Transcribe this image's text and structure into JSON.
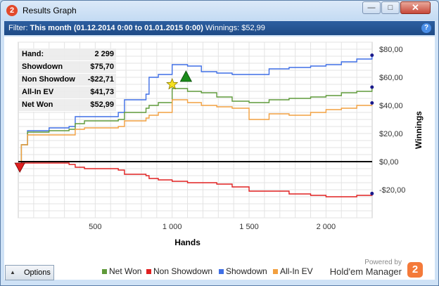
{
  "window": {
    "title": "Results Graph",
    "app_icon": "2"
  },
  "window_buttons": {
    "minimize": "—",
    "maximize": "□",
    "close": "✕"
  },
  "filter": {
    "label": "Filter:",
    "value": "This month (01.12.2014 0:00 to 01.01.2015 0:00)",
    "winnings": "Winnings: $52,99",
    "help": "?"
  },
  "stats": [
    {
      "label": "Hand:",
      "value": "2 299"
    },
    {
      "label": "Showdown",
      "value": "$75,70"
    },
    {
      "label": "Non Showdown",
      "value": "-$22,71"
    },
    {
      "label": "All-In EV",
      "value": "$41,73"
    },
    {
      "label": "Net Won",
      "value": "$52,99"
    }
  ],
  "options_button": "Options",
  "legend": [
    {
      "name": "Net Won",
      "color": "#5f9a3a"
    },
    {
      "name": "Non Showdown",
      "color": "#e02020"
    },
    {
      "name": "Showdown",
      "color": "#3f6fe6"
    },
    {
      "name": "All-In EV",
      "color": "#f2a040"
    }
  ],
  "brand": {
    "powered_by": "Powered by",
    "name": "Hold'em Manager",
    "logo": "2"
  },
  "chart_data": {
    "type": "line",
    "xlabel": "Hands",
    "ylabel": "Winnings",
    "xlim": [
      0,
      2300
    ],
    "ylim": [
      -40,
      85
    ],
    "x_ticks": [
      500,
      1000,
      1500,
      2000
    ],
    "x_tick_labels": [
      "500",
      "1 000",
      "1 500",
      "2 000"
    ],
    "y_ticks": [
      80,
      60,
      40,
      20,
      0,
      -20
    ],
    "y_tick_labels": [
      "$80,00",
      "$60,00",
      "$40,00",
      "$20,00",
      "$0,00",
      "-$20,00"
    ],
    "grid": true,
    "series": [
      {
        "name": "Showdown",
        "color": "#3f6fe6",
        "x": [
          0,
          20,
          60,
          200,
          330,
          370,
          430,
          650,
          690,
          830,
          850,
          910,
          1000,
          1100,
          1190,
          1290,
          1390,
          1500,
          1630,
          1760,
          1900,
          2000,
          2100,
          2200,
          2299
        ],
        "y": [
          0,
          12,
          22,
          24,
          25,
          32,
          32,
          35,
          44,
          48,
          60,
          62,
          69,
          68,
          64,
          63,
          62,
          62,
          66,
          67,
          68,
          69,
          71,
          73,
          75.7
        ]
      },
      {
        "name": "Net Won",
        "color": "#5f9a3a",
        "x": [
          0,
          20,
          60,
          200,
          330,
          370,
          430,
          650,
          690,
          830,
          850,
          910,
          1000,
          1100,
          1190,
          1290,
          1390,
          1500,
          1630,
          1760,
          1900,
          2000,
          2100,
          2200,
          2299
        ],
        "y": [
          0,
          12,
          21,
          22,
          23,
          27,
          29,
          30,
          35,
          38,
          40,
          42,
          52,
          50,
          49,
          46,
          43,
          42,
          44,
          45,
          46,
          47,
          49,
          50,
          52.99
        ]
      },
      {
        "name": "All-In EV",
        "color": "#f2a040",
        "x": [
          0,
          20,
          60,
          200,
          330,
          370,
          430,
          650,
          690,
          830,
          850,
          910,
          1000,
          1100,
          1190,
          1290,
          1390,
          1500,
          1630,
          1760,
          1900,
          2000,
          2100,
          2200,
          2299
        ],
        "y": [
          0,
          12,
          19,
          19,
          19,
          23,
          24,
          25,
          29,
          31,
          33,
          35,
          44,
          42,
          40,
          39,
          38,
          30,
          34,
          33,
          35,
          37,
          38,
          40,
          41.73
        ]
      },
      {
        "name": "Non Showdown",
        "color": "#e02020",
        "x": [
          0,
          20,
          60,
          200,
          330,
          370,
          430,
          650,
          690,
          830,
          850,
          910,
          1000,
          1100,
          1190,
          1290,
          1390,
          1500,
          1630,
          1760,
          1900,
          2000,
          2100,
          2200,
          2299
        ],
        "y": [
          0,
          -1,
          -1,
          -1,
          -2,
          -4,
          -5,
          -6,
          -9,
          -10,
          -12,
          -13,
          -14,
          -15,
          -15,
          -16,
          -18,
          -21,
          -21,
          -23,
          -24,
          -25,
          -25,
          -24,
          -22.71
        ]
      }
    ],
    "markers": [
      {
        "name": "min",
        "shape": "triangle-down",
        "color": "#e02020",
        "x": 10,
        "y": -4
      },
      {
        "name": "best",
        "shape": "star",
        "color": "#f5e020",
        "x": 1000,
        "y": 55
      },
      {
        "name": "max",
        "shape": "triangle-up",
        "color": "#1a8a1a",
        "x": 1090,
        "y": 60
      }
    ]
  }
}
